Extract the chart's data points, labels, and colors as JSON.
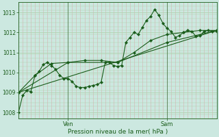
{
  "xlabel": "Pression niveau de la mer( hPa )",
  "ylim": [
    1007.7,
    1013.5
  ],
  "xlim": [
    0,
    48
  ],
  "yticks": [
    1008,
    1009,
    1010,
    1011,
    1012,
    1013
  ],
  "xtick_positions": [
    12,
    36
  ],
  "xtick_labels": [
    "Ven",
    "Sam"
  ],
  "ven_x": 12,
  "sam_x": 36,
  "bg_color": "#cce8e0",
  "line_color": "#1a5c1a",
  "vgrid_color": "#d8b0b0",
  "hgrid_color": "#b0d4b0",
  "series_detail": [
    [
      0,
      1008.0
    ],
    [
      1,
      1008.85
    ],
    [
      2,
      1009.1
    ],
    [
      3,
      1009.05
    ],
    [
      4,
      1009.85
    ],
    [
      5,
      1010.05
    ],
    [
      6,
      1010.4
    ],
    [
      7,
      1010.5
    ],
    [
      8,
      1010.35
    ],
    [
      9,
      1010.15
    ],
    [
      10,
      1009.85
    ],
    [
      11,
      1009.7
    ],
    [
      12,
      1009.7
    ],
    [
      13,
      1009.55
    ],
    [
      14,
      1009.3
    ],
    [
      15,
      1009.25
    ],
    [
      16,
      1009.25
    ],
    [
      17,
      1009.3
    ],
    [
      18,
      1009.35
    ],
    [
      19,
      1009.4
    ],
    [
      20,
      1009.5
    ],
    [
      21,
      1010.5
    ],
    [
      22,
      1010.5
    ],
    [
      23,
      1010.35
    ],
    [
      24,
      1010.3
    ],
    [
      25,
      1010.35
    ],
    [
      26,
      1011.5
    ],
    [
      27,
      1011.75
    ],
    [
      28,
      1012.0
    ],
    [
      29,
      1011.9
    ],
    [
      30,
      1012.25
    ],
    [
      31,
      1012.6
    ],
    [
      32,
      1012.8
    ],
    [
      33,
      1013.15
    ],
    [
      34,
      1012.85
    ],
    [
      35,
      1012.45
    ],
    [
      36,
      1012.2
    ],
    [
      37,
      1012.05
    ],
    [
      38,
      1011.75
    ],
    [
      39,
      1011.85
    ],
    [
      40,
      1012.0
    ],
    [
      41,
      1012.1
    ],
    [
      42,
      1012.05
    ],
    [
      43,
      1011.8
    ],
    [
      44,
      1011.85
    ],
    [
      45,
      1012.05
    ],
    [
      46,
      1012.1
    ],
    [
      47,
      1012.05
    ],
    [
      48,
      1012.05
    ]
  ],
  "series_medium": [
    [
      0,
      1009.0
    ],
    [
      4,
      1009.85
    ],
    [
      8,
      1010.45
    ],
    [
      12,
      1010.5
    ],
    [
      16,
      1010.6
    ],
    [
      20,
      1010.6
    ],
    [
      24,
      1010.5
    ],
    [
      28,
      1011.0
    ],
    [
      32,
      1011.6
    ],
    [
      36,
      1011.9
    ],
    [
      40,
      1012.0
    ],
    [
      44,
      1012.1
    ],
    [
      48,
      1012.1
    ]
  ],
  "series_coarse": [
    [
      0,
      1009.0
    ],
    [
      12,
      1010.5
    ],
    [
      24,
      1010.5
    ],
    [
      36,
      1011.5
    ],
    [
      48,
      1012.1
    ]
  ],
  "series_linear": [
    [
      0,
      1009.0
    ],
    [
      48,
      1012.1
    ]
  ]
}
